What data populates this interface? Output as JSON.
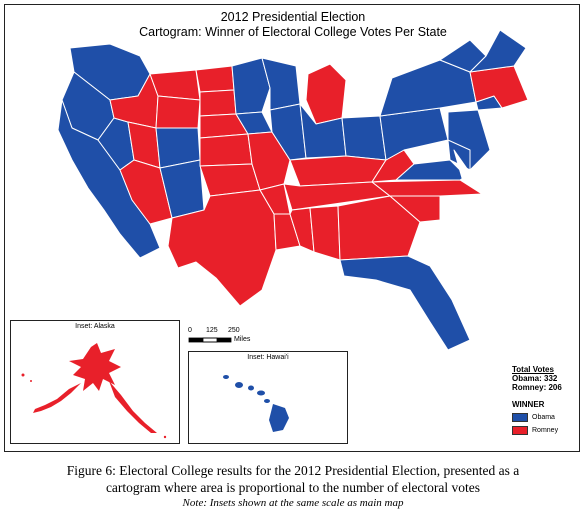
{
  "map": {
    "title_line1": "2012 Presidential Election",
    "title_line2": "Cartogram: Winner of Electoral College Votes Per State",
    "colors": {
      "obama": "#1f4fa8",
      "romney": "#e8202a",
      "border": "#ffffff"
    }
  },
  "insets": {
    "alaska_title": "Inset: Alaska",
    "hawaii_title": "Inset: Hawai'i"
  },
  "scale_bar": {
    "ticks": [
      "0",
      "125",
      "250"
    ],
    "unit": "Miles"
  },
  "legend": {
    "total_votes_heading": "Total Votes",
    "obama_total": "Obama: 332",
    "romney_total": "Romney: 206",
    "winner_heading": "WINNER",
    "items": [
      {
        "label": "Obama",
        "color": "#1f4fa8"
      },
      {
        "label": "Romney",
        "color": "#e8202a"
      }
    ]
  },
  "caption": {
    "line1": "Figure 6: Electoral College results for the 2012 Presidential Election, presented as a",
    "line2": "cartogram where area is proportional to the number of electoral votes",
    "note": "Note: Insets shown at the same scale as main map"
  }
}
